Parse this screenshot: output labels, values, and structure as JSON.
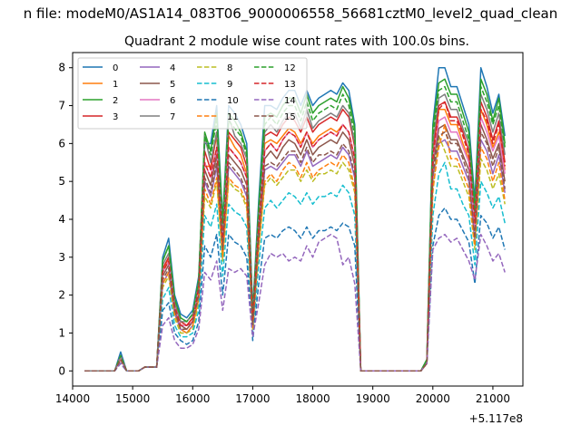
{
  "chart_data": {
    "type": "line",
    "suptitle": "n file: modeM0/AS1A14_083T06_9000006558_56681cztM0_level2_quad_clean",
    "title": "Quadrant 2 module wise count rates with 100.0s bins.",
    "xlabel": "",
    "ylabel": "",
    "x_offset_label": "+5.117e8",
    "xlim": [
      14000,
      21500
    ],
    "ylim": [
      -0.4,
      8.4
    ],
    "xticks": [
      14000,
      15000,
      16000,
      17000,
      18000,
      19000,
      20000,
      21000
    ],
    "yticks": [
      0,
      1,
      2,
      3,
      4,
      5,
      6,
      7,
      8
    ],
    "grid": false,
    "legend_position": "top-left",
    "legend_ncol": 4,
    "x": [
      14200,
      14300,
      14400,
      14500,
      14600,
      14700,
      14800,
      14900,
      15000,
      15100,
      15200,
      15300,
      15400,
      15500,
      15600,
      15700,
      15800,
      15900,
      16000,
      16100,
      16200,
      16300,
      16400,
      16500,
      16600,
      16700,
      16800,
      16900,
      17000,
      17100,
      17200,
      17300,
      17400,
      17500,
      17600,
      17700,
      17800,
      17900,
      18000,
      18100,
      18200,
      18300,
      18400,
      18500,
      18600,
      18700,
      18800,
      18900,
      19000,
      19100,
      19200,
      19300,
      19400,
      19500,
      19600,
      19700,
      19800,
      19900,
      20000,
      20100,
      20200,
      20300,
      20400,
      20500,
      20600,
      20700,
      20800,
      20900,
      21000,
      21100,
      21200
    ],
    "series": [
      {
        "name": "0",
        "color": "#1f77b4",
        "dash": "solid",
        "values": [
          0,
          0,
          0,
          0,
          0,
          0,
          0.5,
          0,
          0,
          0,
          0.1,
          0.1,
          0.1,
          3.0,
          3.5,
          2.0,
          1.5,
          1.4,
          1.6,
          2.5,
          6.0,
          6.0,
          7.0,
          4.0,
          7.0,
          6.8,
          6.5,
          6.0,
          1.6,
          4.5,
          7.0,
          7.0,
          6.9,
          7.2,
          7.4,
          7.4,
          7.0,
          7.4,
          7.0,
          7.2,
          7.3,
          7.4,
          7.3,
          7.6,
          7.4,
          6.5,
          0,
          0,
          0,
          0,
          0,
          0,
          0,
          0,
          0,
          0,
          0,
          0.3,
          6.5,
          8.0,
          8.0,
          7.5,
          7.5,
          7.0,
          6.5,
          4.5,
          8.0,
          7.5,
          6.8,
          7.3,
          6.2
        ]
      },
      {
        "name": "1",
        "color": "#ff7f0e",
        "dash": "solid",
        "values": [
          0,
          0,
          0,
          0,
          0,
          0,
          0.3,
          0,
          0,
          0,
          0.1,
          0.1,
          0.1,
          2.6,
          3.0,
          1.8,
          1.3,
          1.2,
          1.4,
          2.2,
          5.4,
          5.4,
          6.2,
          3.6,
          6.2,
          5.9,
          5.7,
          5.2,
          1.4,
          4.0,
          6.0,
          6.1,
          6.0,
          6.2,
          6.4,
          6.3,
          6.0,
          6.3,
          6.0,
          6.2,
          6.3,
          6.4,
          6.3,
          6.5,
          6.3,
          5.6,
          0,
          0,
          0,
          0,
          0,
          0,
          0,
          0,
          0,
          0,
          0,
          0.2,
          5.6,
          6.9,
          6.9,
          6.5,
          6.5,
          6.0,
          5.6,
          3.9,
          6.9,
          6.5,
          5.9,
          6.3,
          5.3
        ]
      },
      {
        "name": "2",
        "color": "#2ca02c",
        "dash": "solid",
        "values": [
          0,
          0,
          0,
          0,
          0,
          0,
          0.4,
          0,
          0,
          0,
          0.1,
          0.1,
          0.1,
          2.9,
          3.3,
          1.9,
          1.4,
          1.3,
          1.5,
          2.4,
          6.3,
          5.8,
          6.8,
          3.9,
          6.8,
          6.6,
          6.3,
          5.8,
          1.5,
          4.3,
          6.7,
          6.8,
          6.7,
          7.0,
          7.2,
          7.2,
          6.8,
          7.3,
          6.8,
          7.0,
          7.1,
          7.2,
          7.1,
          7.5,
          7.2,
          6.4,
          0,
          0,
          0,
          0,
          0,
          0,
          0,
          0,
          0,
          0,
          0,
          0.3,
          6.4,
          7.6,
          7.7,
          7.3,
          7.3,
          6.8,
          6.3,
          4.3,
          7.7,
          7.3,
          6.6,
          7.2,
          6.0
        ]
      },
      {
        "name": "3",
        "color": "#d62728",
        "dash": "solid",
        "values": [
          0,
          0,
          0,
          0,
          0,
          0,
          0.4,
          0,
          0,
          0,
          0.1,
          0.1,
          0.1,
          2.7,
          3.0,
          1.7,
          1.3,
          1.2,
          1.4,
          2.2,
          5.8,
          5.3,
          6.3,
          3.6,
          6.3,
          6.1,
          5.9,
          5.4,
          1.4,
          4.0,
          6.2,
          6.3,
          6.2,
          6.5,
          6.7,
          6.6,
          6.3,
          6.7,
          6.3,
          6.5,
          6.6,
          6.7,
          6.6,
          6.9,
          6.7,
          5.9,
          0,
          0,
          0,
          0,
          0,
          0,
          0,
          0,
          0,
          0,
          0,
          0.2,
          5.9,
          7.0,
          7.1,
          6.7,
          6.7,
          6.3,
          5.8,
          4.0,
          7.1,
          6.7,
          6.1,
          6.6,
          5.5
        ]
      },
      {
        "name": "4",
        "color": "#9467bd",
        "dash": "solid",
        "values": [
          0,
          0,
          0,
          0,
          0,
          0,
          0.3,
          0,
          0,
          0,
          0.1,
          0.1,
          0.1,
          2.3,
          2.6,
          1.5,
          1.1,
          1.0,
          1.2,
          1.9,
          5.0,
          4.6,
          5.4,
          3.1,
          5.4,
          5.2,
          5.0,
          4.6,
          1.2,
          3.4,
          5.3,
          5.4,
          5.3,
          5.5,
          5.7,
          5.7,
          5.4,
          5.8,
          5.4,
          5.5,
          5.6,
          5.7,
          5.6,
          5.9,
          5.7,
          5.1,
          0,
          0,
          0,
          0,
          0,
          0,
          0,
          0,
          0,
          0,
          0,
          0.2,
          5.1,
          6.0,
          6.1,
          5.8,
          5.8,
          5.4,
          5.0,
          3.4,
          6.1,
          5.8,
          5.2,
          5.7,
          4.7
        ]
      },
      {
        "name": "5",
        "color": "#8c564b",
        "dash": "solid",
        "values": [
          0,
          0,
          0,
          0,
          0,
          0,
          0.3,
          0,
          0,
          0,
          0.1,
          0.1,
          0.1,
          2.5,
          2.8,
          1.6,
          1.2,
          1.1,
          1.3,
          2.1,
          5.3,
          4.9,
          5.7,
          3.3,
          5.7,
          5.5,
          5.3,
          4.9,
          1.3,
          3.6,
          5.6,
          5.8,
          5.6,
          5.9,
          6.1,
          6.0,
          5.7,
          6.1,
          5.7,
          5.9,
          6.0,
          6.1,
          6.0,
          6.3,
          6.1,
          5.4,
          0,
          0,
          0,
          0,
          0,
          0,
          0,
          0,
          0,
          0,
          0,
          0.2,
          5.4,
          6.4,
          6.5,
          6.1,
          6.1,
          5.7,
          5.3,
          3.7,
          6.5,
          6.1,
          5.6,
          6.0,
          5.0
        ]
      },
      {
        "name": "6",
        "color": "#e377c2",
        "dash": "solid",
        "values": [
          0,
          0,
          0,
          0,
          0,
          0,
          0.3,
          0,
          0,
          0,
          0.1,
          0.1,
          0.1,
          2.6,
          2.9,
          1.7,
          1.2,
          1.2,
          1.3,
          2.2,
          5.5,
          5.1,
          5.9,
          3.4,
          5.9,
          5.7,
          5.5,
          5.1,
          1.3,
          3.8,
          5.8,
          6.0,
          5.8,
          6.1,
          6.3,
          6.2,
          5.9,
          6.3,
          5.9,
          6.1,
          6.2,
          6.3,
          6.2,
          6.5,
          6.3,
          5.6,
          0,
          0,
          0,
          0,
          0,
          0,
          0,
          0,
          0,
          0,
          0,
          0.2,
          5.6,
          6.6,
          6.7,
          6.3,
          6.3,
          5.9,
          5.5,
          3.8,
          6.7,
          6.3,
          5.8,
          6.2,
          5.2
        ]
      },
      {
        "name": "7",
        "color": "#7f7f7f",
        "dash": "solid",
        "values": [
          0,
          0,
          0,
          0,
          0,
          0,
          0.4,
          0,
          0,
          0,
          0.1,
          0.1,
          0.1,
          2.8,
          3.1,
          1.8,
          1.3,
          1.3,
          1.5,
          2.3,
          6.2,
          5.5,
          6.3,
          3.7,
          6.7,
          6.2,
          6.0,
          5.6,
          1.5,
          4.1,
          6.3,
          6.5,
          6.3,
          6.6,
          6.8,
          6.8,
          6.4,
          6.9,
          6.4,
          6.6,
          6.7,
          6.8,
          6.7,
          7.0,
          6.8,
          6.0,
          0,
          0,
          0,
          0,
          0,
          0,
          0,
          0,
          0,
          0,
          0,
          0.2,
          6.0,
          7.2,
          7.3,
          6.9,
          6.9,
          6.4,
          6.0,
          4.1,
          7.3,
          6.9,
          6.3,
          6.8,
          5.7
        ]
      },
      {
        "name": "8",
        "color": "#bcbd22",
        "dash": "dashed",
        "values": [
          0,
          0,
          0,
          0,
          0,
          0,
          0.3,
          0,
          0,
          0,
          0.1,
          0.1,
          0.1,
          2.2,
          2.5,
          1.4,
          1.0,
          1.0,
          1.1,
          1.8,
          4.6,
          4.3,
          5.0,
          2.9,
          5.0,
          4.8,
          4.7,
          4.3,
          1.1,
          3.2,
          4.9,
          5.1,
          4.9,
          5.1,
          5.3,
          5.3,
          5.0,
          5.3,
          5.0,
          5.2,
          5.2,
          5.3,
          5.2,
          5.5,
          5.3,
          4.7,
          0,
          0,
          0,
          0,
          0,
          0,
          0,
          0,
          0,
          0,
          0,
          0.2,
          4.7,
          6.2,
          5.8,
          5.4,
          5.4,
          5.0,
          4.6,
          3.2,
          5.6,
          5.3,
          4.8,
          5.2,
          4.4
        ]
      },
      {
        "name": "9",
        "color": "#17becf",
        "dash": "dashed",
        "values": [
          0,
          0,
          0,
          0,
          0,
          0,
          0.2,
          0,
          0,
          0,
          0.1,
          0.1,
          0.1,
          1.9,
          2.2,
          1.2,
          0.9,
          0.9,
          1.0,
          1.6,
          4.1,
          3.8,
          4.4,
          2.5,
          4.4,
          4.2,
          4.1,
          3.8,
          1.0,
          2.8,
          4.3,
          4.5,
          4.3,
          4.5,
          4.7,
          4.6,
          4.4,
          4.7,
          4.4,
          4.6,
          4.6,
          4.7,
          4.6,
          4.9,
          4.7,
          4.1,
          0,
          0,
          0,
          0,
          0,
          0,
          0,
          0,
          0,
          0,
          0,
          0.2,
          4.1,
          5.2,
          5.5,
          4.8,
          4.8,
          4.4,
          4.1,
          2.8,
          5.0,
          4.7,
          4.3,
          4.6,
          3.9
        ]
      },
      {
        "name": "10",
        "color": "#1f77b4",
        "dash": "dashed",
        "values": [
          0,
          0,
          0,
          0,
          0,
          0,
          0.2,
          0,
          0,
          0,
          0.1,
          0.1,
          0.1,
          1.6,
          1.8,
          1.0,
          0.8,
          0.7,
          0.8,
          1.3,
          3.3,
          3.0,
          3.6,
          2.0,
          3.6,
          3.4,
          3.3,
          3.0,
          0.8,
          2.3,
          3.5,
          3.6,
          3.5,
          3.7,
          3.8,
          3.7,
          3.5,
          3.8,
          3.5,
          3.7,
          3.7,
          3.8,
          3.7,
          3.9,
          3.8,
          3.3,
          0,
          0,
          0,
          0,
          0,
          0,
          0,
          0,
          0,
          0,
          0,
          0.2,
          3.3,
          4.1,
          4.3,
          4.0,
          4.0,
          3.7,
          3.4,
          2.3,
          4.1,
          3.9,
          3.5,
          3.8,
          3.2
        ]
      },
      {
        "name": "11",
        "color": "#ff7f0e",
        "dash": "dashed",
        "values": [
          0,
          0,
          0,
          0,
          0,
          0,
          0.3,
          0,
          0,
          0,
          0.1,
          0.1,
          0.1,
          2.3,
          2.6,
          1.5,
          1.1,
          1.0,
          1.2,
          1.9,
          4.8,
          4.4,
          5.1,
          3.0,
          5.1,
          4.9,
          4.8,
          4.4,
          1.1,
          3.3,
          5.0,
          5.2,
          5.0,
          5.3,
          5.5,
          5.4,
          5.1,
          5.5,
          5.1,
          5.3,
          5.4,
          5.5,
          5.4,
          5.7,
          5.5,
          4.8,
          0,
          0,
          0,
          0,
          0,
          0,
          0,
          0,
          0,
          0,
          0,
          0.2,
          4.8,
          5.9,
          6.5,
          5.6,
          5.6,
          5.2,
          4.8,
          3.3,
          5.9,
          5.6,
          5.0,
          5.5,
          4.5
        ]
      },
      {
        "name": "12",
        "color": "#2ca02c",
        "dash": "dashed",
        "values": [
          0,
          0,
          0,
          0,
          0,
          0,
          0.4,
          0,
          0,
          0,
          0.1,
          0.1,
          0.1,
          2.9,
          3.3,
          1.9,
          1.4,
          1.3,
          1.5,
          2.4,
          6.2,
          5.7,
          6.6,
          3.9,
          6.6,
          6.4,
          6.2,
          5.7,
          1.5,
          4.2,
          6.5,
          6.7,
          6.5,
          6.8,
          7.0,
          7.0,
          6.6,
          7.1,
          6.6,
          6.8,
          6.9,
          7.0,
          6.9,
          7.3,
          7.0,
          6.2,
          0,
          0,
          0,
          0,
          0,
          0,
          0,
          0,
          0,
          0,
          0,
          0.3,
          6.2,
          7.4,
          7.5,
          7.1,
          7.1,
          6.6,
          6.1,
          4.2,
          7.5,
          7.1,
          6.5,
          7.0,
          5.9
        ]
      },
      {
        "name": "13",
        "color": "#d62728",
        "dash": "dashed",
        "values": [
          0,
          0,
          0,
          0,
          0,
          0,
          0.3,
          0,
          0,
          0,
          0.1,
          0.1,
          0.1,
          2.6,
          2.9,
          1.7,
          1.2,
          1.2,
          1.3,
          2.2,
          5.5,
          5.1,
          5.9,
          3.4,
          5.9,
          5.7,
          5.5,
          5.1,
          1.3,
          3.8,
          5.8,
          6.0,
          5.8,
          6.1,
          6.3,
          6.2,
          5.9,
          6.3,
          5.9,
          6.1,
          6.2,
          6.3,
          6.2,
          6.5,
          6.3,
          5.6,
          0,
          0,
          0,
          0,
          0,
          0,
          0,
          0,
          0,
          0,
          0,
          0.2,
          5.6,
          6.9,
          7.1,
          6.6,
          6.6,
          6.2,
          5.7,
          3.9,
          6.9,
          6.6,
          6.0,
          6.5,
          5.4
        ]
      },
      {
        "name": "14",
        "color": "#9467bd",
        "dash": "dashed",
        "values": [
          0,
          0,
          0,
          0,
          0,
          0,
          0.2,
          0,
          0,
          0,
          0.1,
          0.1,
          0.1,
          1.2,
          1.4,
          0.8,
          0.6,
          0.6,
          0.7,
          1.1,
          2.6,
          2.4,
          2.9,
          1.6,
          2.7,
          2.6,
          2.7,
          2.5,
          0.9,
          1.8,
          2.8,
          3.1,
          3.0,
          3.1,
          2.9,
          3.0,
          2.9,
          3.3,
          3.0,
          3.4,
          3.5,
          3.6,
          3.5,
          2.8,
          3.0,
          2.3,
          0,
          0,
          0,
          0,
          0,
          0,
          0,
          0,
          0,
          0,
          0,
          0.2,
          3.2,
          3.5,
          3.6,
          3.4,
          3.5,
          3.2,
          2.9,
          2.4,
          3.6,
          3.3,
          2.9,
          3.1,
          2.6
        ]
      },
      {
        "name": "15",
        "color": "#8c564b",
        "dash": "dashed",
        "values": [
          0,
          0,
          0,
          0,
          0,
          0,
          0.3,
          0,
          0,
          0,
          0.1,
          0.1,
          0.1,
          2.4,
          2.7,
          1.6,
          1.1,
          1.1,
          1.3,
          2.0,
          5.1,
          4.7,
          5.5,
          3.2,
          5.5,
          5.3,
          5.1,
          4.7,
          1.2,
          3.5,
          5.4,
          5.5,
          5.4,
          5.6,
          5.8,
          5.8,
          5.5,
          5.9,
          5.5,
          5.7,
          5.7,
          5.8,
          5.7,
          6.0,
          5.8,
          5.2,
          0,
          0,
          0,
          0,
          0,
          0,
          0,
          0,
          0,
          0,
          0,
          0.2,
          5.2,
          6.2,
          6.3,
          6.0,
          6.0,
          5.6,
          5.1,
          3.5,
          6.3,
          6.0,
          5.4,
          5.9,
          4.8
        ]
      }
    ]
  }
}
